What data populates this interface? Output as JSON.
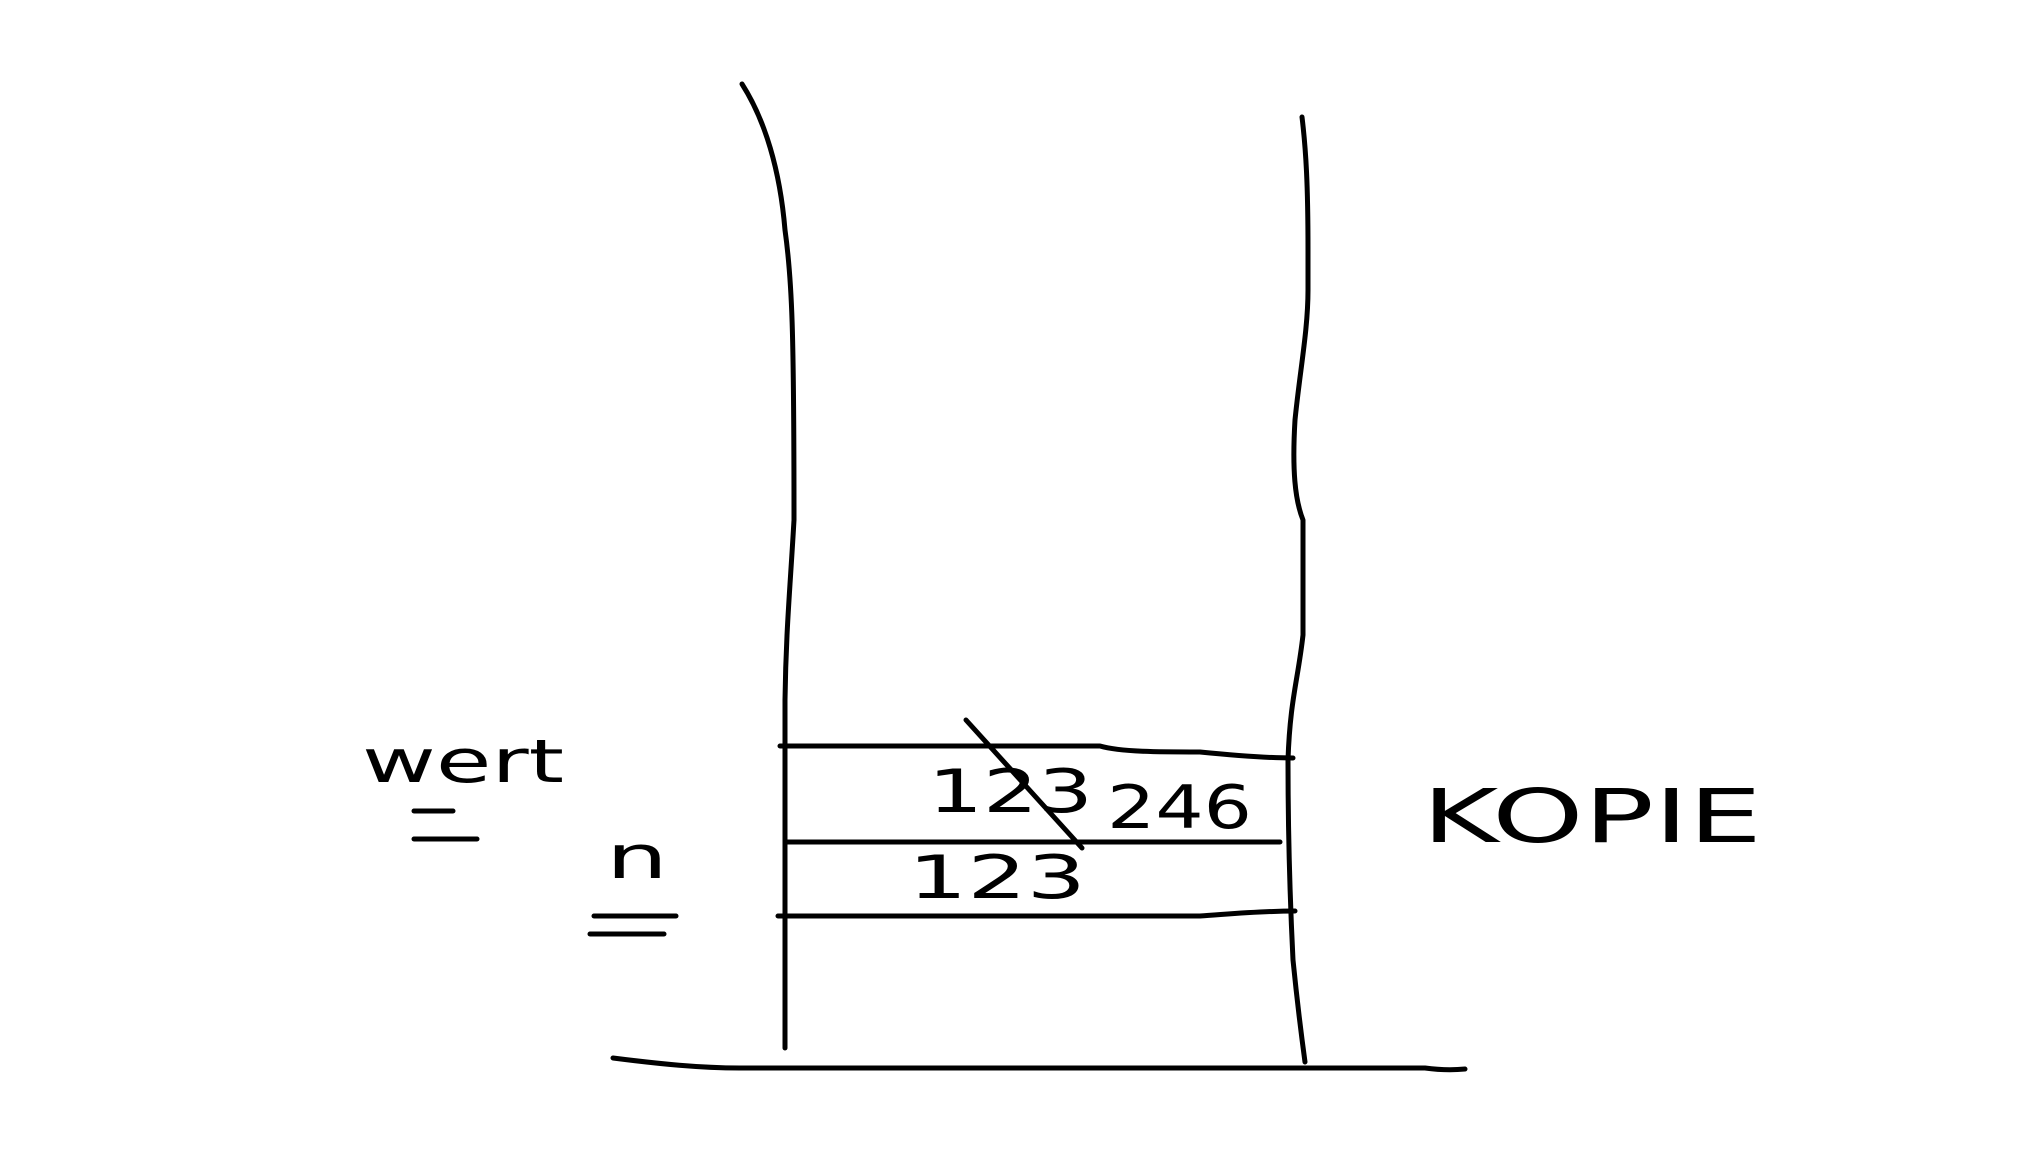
{
  "stack_diagram": {
    "variables": [
      {
        "name": "wert",
        "old_value": "123",
        "new_value": "246"
      },
      {
        "name": "n",
        "value": "123"
      }
    ],
    "annotation": "KOPIE"
  },
  "colors": {
    "ink": "#000000",
    "background": "#ffffff"
  }
}
